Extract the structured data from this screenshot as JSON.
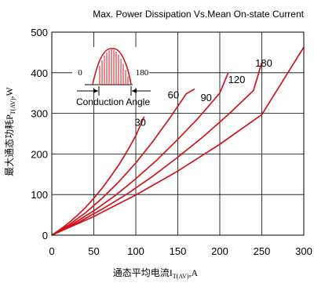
{
  "chart_data": {
    "type": "line",
    "title": "Max. Power Dissipation Vs.Mean On-state Current",
    "xlabel": "通态平均电流I",
    "xlabel_sub": "T(AV)",
    "xlabel_unit": ",A",
    "ylabel": "最大通态功耗P",
    "ylabel_sub": "T(AV)",
    "ylabel_unit": ",W",
    "xlim": [
      0,
      300
    ],
    "ylim": [
      0,
      500
    ],
    "xticks": [
      0,
      50,
      100,
      150,
      200,
      250,
      300
    ],
    "yticks": [
      0,
      100,
      200,
      300,
      400,
      500
    ],
    "grid": true,
    "color": "#d0141c",
    "series": [
      {
        "name": "30",
        "x": [
          0,
          10,
          20,
          30,
          40,
          50,
          60,
          70,
          80,
          90,
          100,
          110
        ],
        "y": [
          0,
          14,
          30,
          48,
          68,
          91,
          116,
          144,
          174,
          208,
          245,
          292
        ]
      },
      {
        "name": "60",
        "x": [
          0,
          20,
          40,
          60,
          80,
          100,
          120,
          140,
          160,
          170
        ],
        "y": [
          0,
          25,
          55,
          91,
          132,
          178,
          230,
          287,
          348,
          360
        ]
      },
      {
        "name": "90",
        "x": [
          0,
          25,
          50,
          75,
          100,
          125,
          150,
          175,
          200,
          210
        ],
        "y": [
          0,
          28,
          60,
          97,
          139,
          185,
          236,
          290,
          350,
          400
        ]
      },
      {
        "name": "120",
        "x": [
          0,
          30,
          60,
          90,
          120,
          150,
          180,
          210,
          240,
          250
        ],
        "y": [
          0,
          30,
          64,
          102,
          145,
          192,
          242,
          297,
          356,
          425
        ]
      },
      {
        "name": "180",
        "x": [
          0,
          50,
          100,
          150,
          200,
          250,
          300
        ],
        "y": [
          0,
          46,
          99,
          158,
          224,
          297,
          463
        ]
      }
    ],
    "inset": {
      "label_left": "0",
      "label_right": "180",
      "caption": "Conduction Angle"
    }
  }
}
